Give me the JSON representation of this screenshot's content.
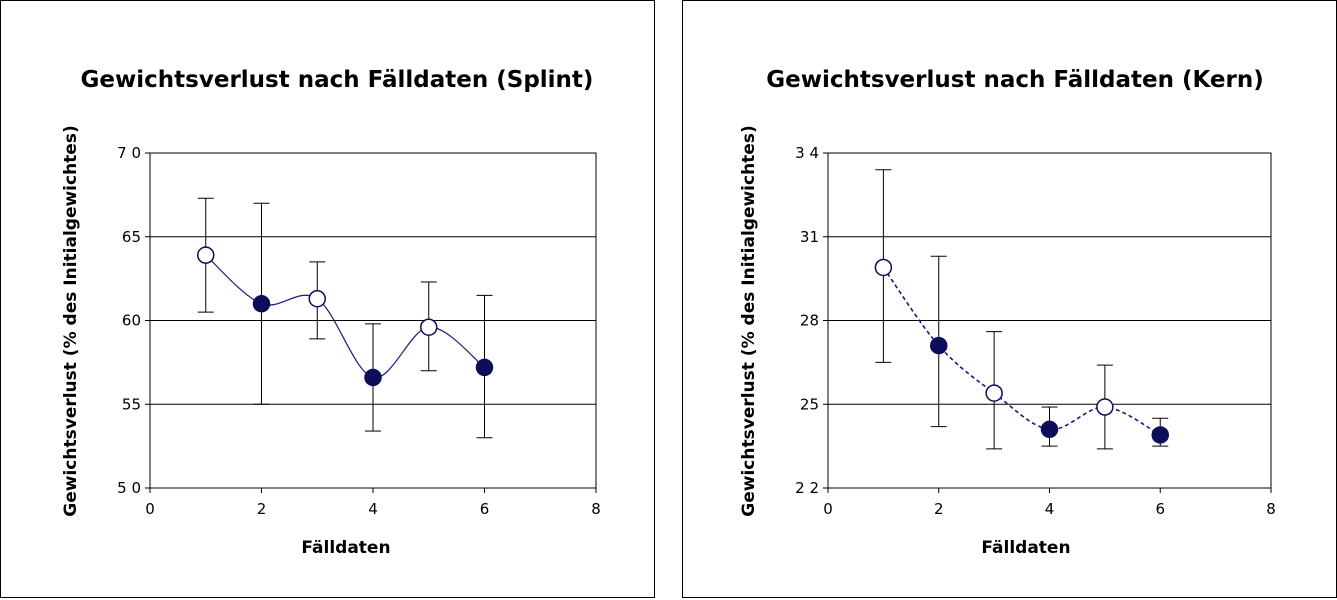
{
  "chart_data": [
    {
      "type": "scatter",
      "title": "Gewichtsverlust nach Fälldaten (Splint)",
      "xlabel": "Fälldaten",
      "ylabel": "Gewichtsverlust (% des Initialgewichtes)",
      "xlim": [
        0,
        8
      ],
      "ylim": [
        50,
        70
      ],
      "xticks": [
        "0",
        "2",
        "4",
        "6",
        "8"
      ],
      "yticks": [
        "5 0",
        "55",
        "60",
        "65",
        "7 0"
      ],
      "grid": "horizontal",
      "line_style": "solid-smooth",
      "colors": {
        "line": "#1a1a7a",
        "marker": "#0d0d5c"
      },
      "points": [
        {
          "x": 1,
          "y": 63.9,
          "err_low": 60.5,
          "err_high": 67.3,
          "marker": "open"
        },
        {
          "x": 2,
          "y": 61.0,
          "err_low": 55.0,
          "err_high": 67.0,
          "marker": "filled"
        },
        {
          "x": 3,
          "y": 61.3,
          "err_low": 58.9,
          "err_high": 63.5,
          "marker": "open"
        },
        {
          "x": 4,
          "y": 56.6,
          "err_low": 53.4,
          "err_high": 59.8,
          "marker": "filled"
        },
        {
          "x": 5,
          "y": 59.6,
          "err_low": 57.0,
          "err_high": 62.3,
          "marker": "open"
        },
        {
          "x": 6,
          "y": 57.2,
          "err_low": 53.0,
          "err_high": 61.5,
          "marker": "filled"
        }
      ]
    },
    {
      "type": "scatter",
      "title": "Gewichtsverlust nach Fälldaten (Kern)",
      "xlabel": "Fälldaten",
      "ylabel": "Gewichtsverlust (% des Initialgewichtes)",
      "xlim": [
        0,
        8
      ],
      "ylim": [
        22,
        34
      ],
      "xticks": [
        "0",
        "2",
        "4",
        "6",
        "8"
      ],
      "yticks": [
        "2 2",
        "25",
        "28",
        "31",
        "3 4"
      ],
      "grid": "horizontal",
      "line_style": "dashed-smooth",
      "colors": {
        "line": "#1a1a7a",
        "marker": "#0d0d5c"
      },
      "points": [
        {
          "x": 1,
          "y": 29.9,
          "err_low": 26.5,
          "err_high": 33.4,
          "marker": "open"
        },
        {
          "x": 2,
          "y": 27.1,
          "err_low": 24.2,
          "err_high": 30.3,
          "marker": "filled"
        },
        {
          "x": 3,
          "y": 25.4,
          "err_low": 23.4,
          "err_high": 27.6,
          "marker": "open"
        },
        {
          "x": 4,
          "y": 24.1,
          "err_low": 23.5,
          "err_high": 24.9,
          "marker": "filled"
        },
        {
          "x": 5,
          "y": 24.9,
          "err_low": 23.4,
          "err_high": 26.4,
          "marker": "open"
        },
        {
          "x": 6,
          "y": 23.9,
          "err_low": 23.5,
          "err_high": 24.5,
          "marker": "filled"
        }
      ]
    }
  ]
}
